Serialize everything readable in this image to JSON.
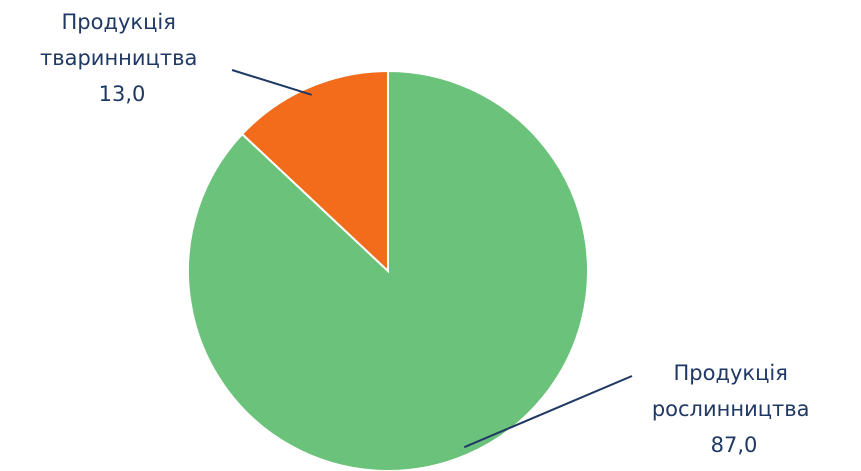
{
  "chart_data": {
    "type": "pie",
    "slices": [
      {
        "label_lines": [
          "Продукція",
          "рослинництва"
        ],
        "value": 87.0,
        "value_label": "87,0",
        "color": "#6bc27b"
      },
      {
        "label_lines": [
          "Продукція",
          "тваринництва"
        ],
        "value": 13.0,
        "value_label": "13,0",
        "color": "#f36c1c"
      }
    ],
    "label_color": "#1f3864",
    "leader_color": "#1f3864",
    "slice_border_color": "#ffffff",
    "legend": false
  }
}
